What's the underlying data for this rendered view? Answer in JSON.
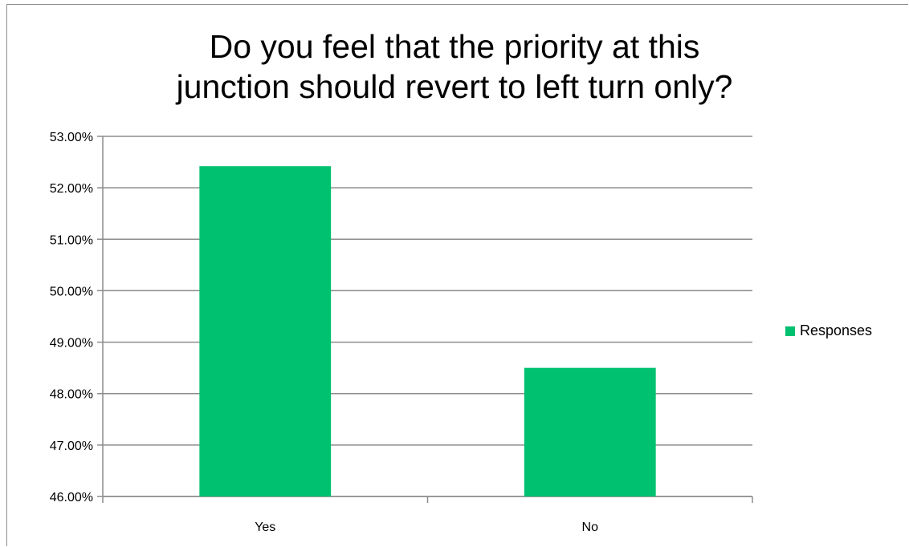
{
  "chart_data": {
    "type": "bar",
    "title": "Do you feel that the priority at this\njunction should revert to left turn only?",
    "categories": [
      "Yes",
      "No"
    ],
    "series": [
      {
        "name": "Responses",
        "values": [
          52.42,
          48.5
        ],
        "color": "#00c170"
      }
    ],
    "ylim": [
      46,
      53
    ],
    "yticks": [
      "46.00%",
      "47.00%",
      "48.00%",
      "49.00%",
      "50.00%",
      "51.00%",
      "52.00%",
      "53.00%"
    ],
    "grid": true,
    "legend_position": "right"
  }
}
